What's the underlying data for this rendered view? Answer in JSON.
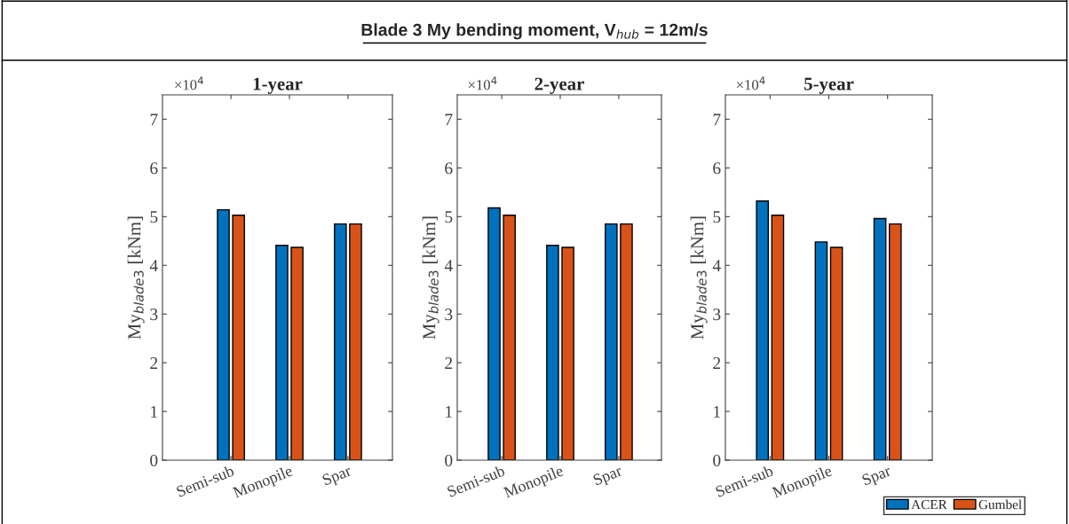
{
  "chart_data": [
    {
      "type": "bar",
      "title": "1-year",
      "ylabel": "My$_{blade3}$ [kNm]",
      "annotations": [
        "Blade 3 My bending moment, V$_{hub}$ = 12m/s",
        "×10$^{4}$"
      ],
      "categories": [
        "Semi-sub",
        "Monopile",
        "Spar"
      ],
      "series": [
        {
          "color": "#0072bd",
          "values": [
            5.14,
            4.41,
            4.85
          ]
        },
        {
          "color": "#d95319",
          "values": [
            5.03,
            4.37,
            4.85
          ]
        }
      ],
      "ylim": [
        0,
        7.5
      ],
      "yticks": [
        0,
        1,
        2,
        3,
        4,
        5,
        6,
        7
      ],
      "grid": false,
      "legend": false
    },
    {
      "type": "bar",
      "title": "2-year",
      "ylabel": "My$_{blade3}$ [kNm]",
      "annotations": [
        "×10$^{4}$"
      ],
      "categories": [
        "Semi-sub",
        "Monopile",
        "Spar"
      ],
      "series": [
        {
          "color": "#0072bd",
          "values": [
            5.18,
            4.41,
            4.85
          ]
        },
        {
          "color": "#d95319",
          "values": [
            5.03,
            4.37,
            4.85
          ]
        }
      ],
      "ylim": [
        0,
        7.5
      ],
      "yticks": [
        0,
        1,
        2,
        3,
        4,
        5,
        6,
        7
      ],
      "grid": false,
      "legend": false
    },
    {
      "type": "bar",
      "title": "5-year",
      "ylabel": "My$_{blade3}$ [kNm]",
      "annotations": [
        "×10$^{4}$"
      ],
      "categories": [
        "Semi-sub",
        "Monopile",
        "Spar"
      ],
      "series": [
        {
          "name": "ACER",
          "color": "#0072bd",
          "values": [
            5.32,
            4.48,
            4.96
          ]
        },
        {
          "name": "Gumbel",
          "color": "#d95319",
          "values": [
            5.03,
            4.37,
            4.85
          ]
        }
      ],
      "ylim": [
        0,
        7.5
      ],
      "yticks": [
        0,
        1,
        2,
        3,
        4,
        5,
        6,
        7
      ],
      "grid": false,
      "legend": "bottom right"
    }
  ]
}
